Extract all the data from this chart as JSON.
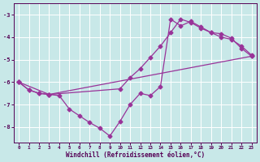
{
  "xlabel": "Windchill (Refroidissement éolien,°C)",
  "xlim": [
    -0.5,
    23.5
  ],
  "ylim": [
    -8.7,
    -2.5
  ],
  "yticks": [
    -8,
    -7,
    -6,
    -5,
    -4,
    -3
  ],
  "xticks": [
    0,
    1,
    2,
    3,
    4,
    5,
    6,
    7,
    8,
    9,
    10,
    11,
    12,
    13,
    14,
    15,
    16,
    17,
    18,
    19,
    20,
    21,
    22,
    23
  ],
  "bg_color": "#c8e8e8",
  "grid_color": "#ffffff",
  "line_color": "#993399",
  "lines": [
    {
      "x": [
        0,
        1,
        2,
        3,
        4,
        5,
        6,
        7,
        8,
        9,
        10,
        11,
        12,
        13,
        14,
        15,
        16,
        17,
        18,
        19,
        20,
        21,
        22,
        23
      ],
      "y": [
        -6.0,
        -6.35,
        -6.5,
        -6.55,
        -6.6,
        -7.2,
        -7.5,
        -7.8,
        -8.05,
        -8.4,
        -7.75,
        -7.0,
        -6.5,
        -6.6,
        -6.2,
        -3.2,
        -3.5,
        -3.3,
        -3.55,
        -3.8,
        -4.0,
        -4.1,
        -4.4,
        -4.8
      ]
    },
    {
      "x": [
        0,
        1,
        2,
        3,
        10,
        11,
        12,
        13,
        14,
        15,
        16,
        17,
        18,
        19,
        20,
        21,
        22,
        23
      ],
      "y": [
        -6.0,
        -6.35,
        -6.5,
        -6.55,
        -6.3,
        -5.8,
        -5.4,
        -4.9,
        -4.4,
        -3.8,
        -3.2,
        -3.35,
        -3.6,
        -3.8,
        -3.85,
        -4.05,
        -4.5,
        -4.85
      ]
    },
    {
      "x": [
        0,
        3,
        23
      ],
      "y": [
        -6.0,
        -6.55,
        -4.85
      ]
    }
  ],
  "marker": "D",
  "markersize": 2.5,
  "linewidth": 0.9
}
